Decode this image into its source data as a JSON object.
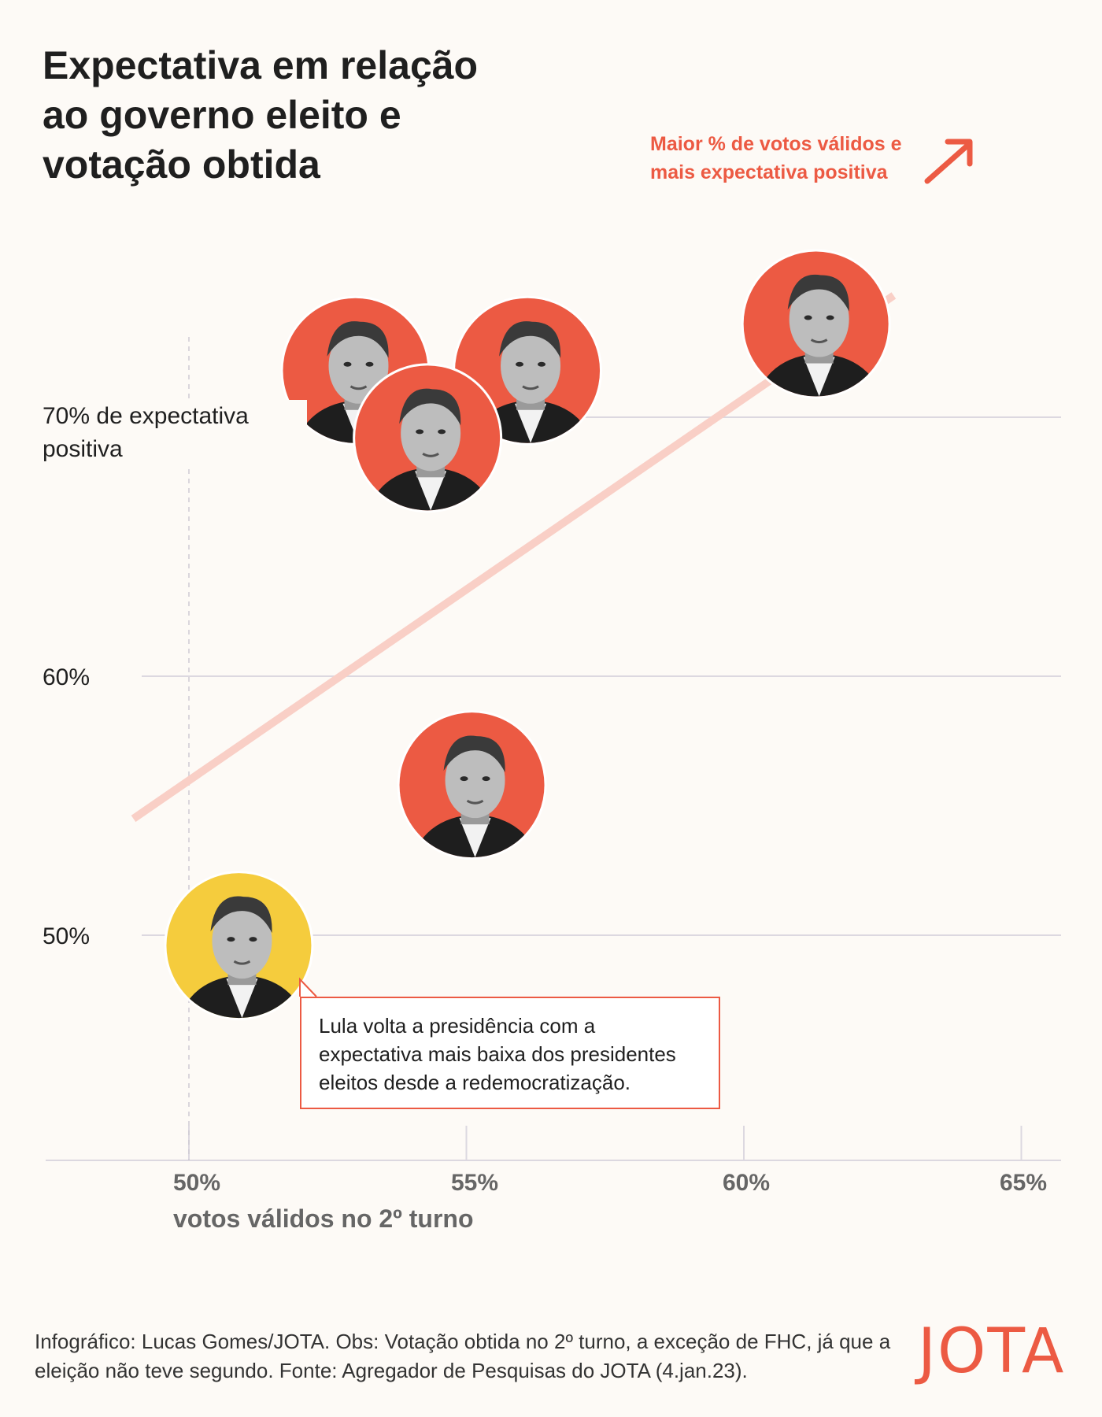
{
  "header": {
    "title": "Expectativa em relação ao governo eleito e votação obtida"
  },
  "chart_data": {
    "type": "scatter",
    "title": "Expectativa em relação ao governo eleito e votação obtida",
    "xlabel": "votos válidos no 2º turno",
    "ylabel": "",
    "xlim": [
      47.5,
      65.5
    ],
    "ylim": [
      42,
      78
    ],
    "x_ticks": [
      {
        "value": 50,
        "label": "50%"
      },
      {
        "value": 55,
        "label": "55%"
      },
      {
        "value": 60,
        "label": "60%"
      },
      {
        "value": 65,
        "label": "65%"
      }
    ],
    "y_ticks": [
      {
        "value": 70,
        "label": "70% de expectativa positiva"
      },
      {
        "value": 60,
        "label": "60%"
      },
      {
        "value": 50,
        "label": "50%"
      }
    ],
    "grid": "horizontal",
    "points": [
      {
        "id": "collor",
        "x": 53.0,
        "y": 71.8,
        "color": "#ec5a43",
        "icon": "portrait-collor"
      },
      {
        "id": "dilma",
        "x": 56.1,
        "y": 71.8,
        "color": "#ec5a43",
        "icon": "portrait-dilma"
      },
      {
        "id": "fhc",
        "x": 54.3,
        "y": 69.2,
        "color": "#ec5a43",
        "icon": "portrait-fhc"
      },
      {
        "id": "lula-2002",
        "x": 61.3,
        "y": 73.6,
        "color": "#ec5a43",
        "icon": "portrait-lula-2002"
      },
      {
        "id": "bolsonaro",
        "x": 55.1,
        "y": 55.8,
        "color": "#ec5a43",
        "icon": "portrait-bolsonaro"
      },
      {
        "id": "lula-2022",
        "x": 50.9,
        "y": 49.6,
        "color": "#f5cc3d",
        "icon": "portrait-lula-2022"
      }
    ],
    "trend_line": {
      "from": [
        49.0,
        54.5
      ],
      "to": [
        62.7,
        74.7
      ],
      "color": "#f9cfc6"
    },
    "reference_line_x": 50,
    "trend_label": "Maior % de votos válidos e mais expectativa positiva",
    "annotation": "Lula volta a presidência com a expectativa mais baixa dos presidentes eleitos desde a redemocratização."
  },
  "footer": {
    "credit": "Infográfico: Lucas Gomes/JOTA. Obs: Votação obtida no 2º turno, a exceção de FHC, já que a eleição não teve segundo. Fonte: Agregador de Pesquisas do JOTA (4.jan.23).",
    "logo": "JOTA"
  },
  "colors": {
    "accent": "#ec5a43",
    "highlight": "#f5cc3d",
    "trend": "#f9cfc6",
    "grid": "#dcd8e0",
    "background": "#fdfaf6"
  }
}
